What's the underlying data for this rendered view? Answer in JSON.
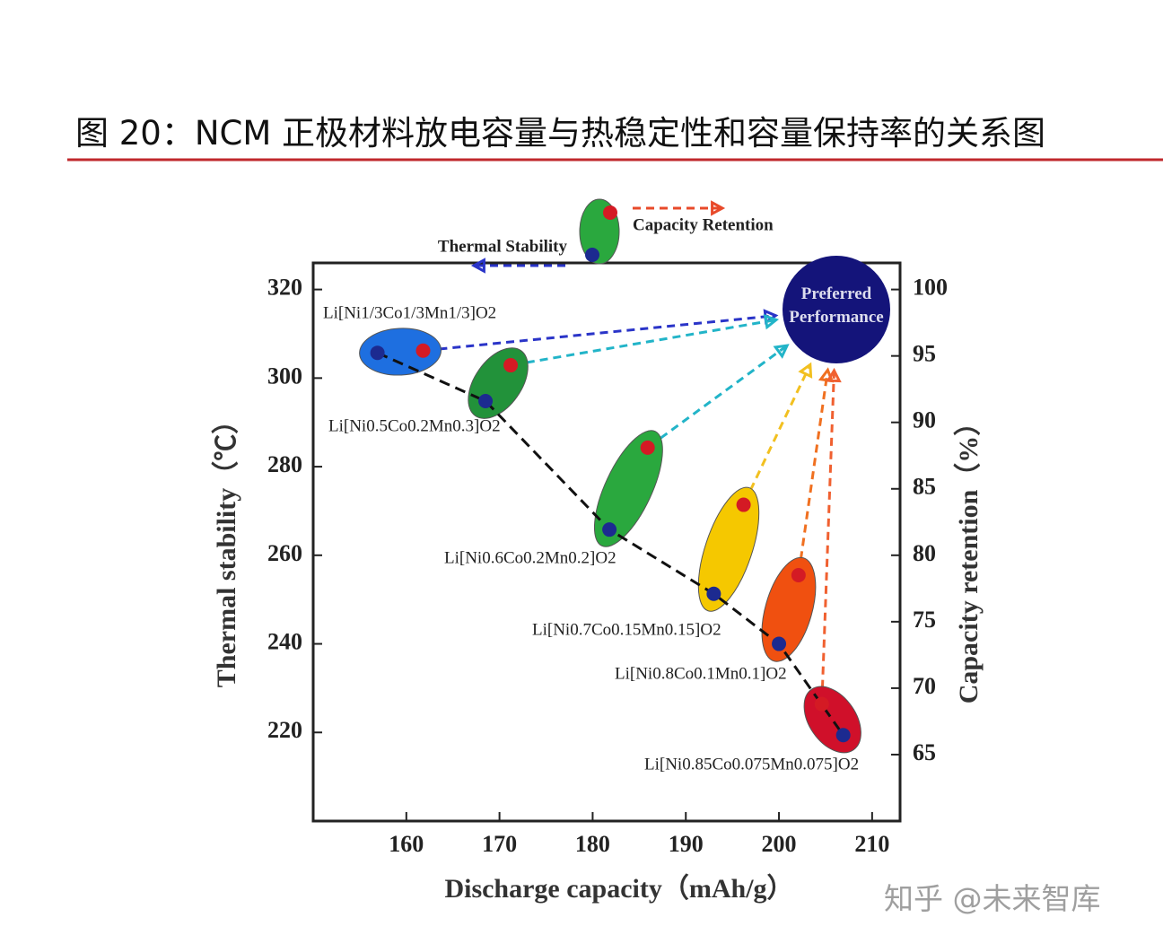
{
  "chart_data": {
    "type": "scatter",
    "title": "图 20：NCM 正极材料放电容量与热稳定性和容量保持率的关系图",
    "xlabel": "Discharge capacity（mAh/g）",
    "ylabel": "Thermal stability（℃）",
    "y2label": "Capacity retention（%）",
    "xlim": [
      150,
      213
    ],
    "xticks": [
      160,
      170,
      180,
      190,
      200,
      210
    ],
    "ylim": [
      200,
      326
    ],
    "yticks": [
      220,
      240,
      260,
      280,
      300,
      320
    ],
    "y2lim": [
      60,
      102
    ],
    "y2ticks": [
      65,
      70,
      75,
      80,
      85,
      90,
      95,
      100
    ],
    "series": [
      {
        "name": "Thermal Stability",
        "color": "#1c2a90",
        "x": [
          156.9,
          168.5,
          181.8,
          193.0,
          200.0,
          206.9
        ],
        "values": [
          305.7,
          294.8,
          265.8,
          251.3,
          240.0,
          219.4
        ]
      },
      {
        "name": "Capacity Retention",
        "color": "#d41a24",
        "axis": "y2",
        "x": [
          161.8,
          171.2,
          185.9,
          196.2,
          202.1,
          204.6
        ],
        "values": [
          95.4,
          94.3,
          88.1,
          83.8,
          78.5,
          68.8
        ]
      }
    ],
    "materials": [
      {
        "label": "Li[Ni1/3Co1/3Mn1/3]O2",
        "color": "#1e6fe0",
        "arrow_color": "#2a34c8"
      },
      {
        "label": "Li[Ni0.5Co0.2Mn0.3]O2",
        "color": "#22923a",
        "arrow_color": "#22b4c8"
      },
      {
        "label": "Li[Ni0.6Co0.2Mn0.2]O2",
        "color": "#2aa83e",
        "arrow_color": "#22b4c8"
      },
      {
        "label": "Li[Ni0.7Co0.15Mn0.15]O2",
        "color": "#f5c800",
        "arrow_color": "#f2c020"
      },
      {
        "label": "Li[Ni0.8Co0.1Mn0.1]O2",
        "color": "#f05010",
        "arrow_color": "#f07020"
      },
      {
        "label": "Li[Ni0.85Co0.075Mn0.075]O2",
        "color": "#d0102a",
        "arrow_color": "#f06030"
      }
    ],
    "target_label": "Preferred Performance",
    "watermark": "知乎 @未来智库"
  }
}
